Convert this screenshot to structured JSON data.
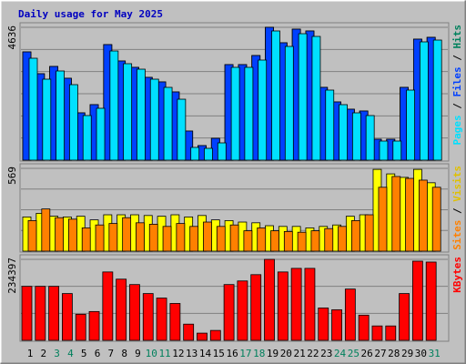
{
  "chart_data": [
    {
      "type": "bar",
      "title": "Daily usage for May 2025",
      "legend_separator": " / ",
      "ylim": [
        0,
        4636
      ],
      "yticks": [
        4636
      ],
      "grid_divisions": 6,
      "series": [
        {
          "name": "Pages",
          "color": "#00e0ff",
          "values": [
            3556,
            2826,
            3112,
            2635,
            1556,
            1810,
            3810,
            3366,
            3175,
            2826,
            2540,
            2127,
            445,
            413,
            603,
            3239,
            3239,
            3493,
            4509,
            3969,
            4413,
            4318,
            2445,
            1937,
            1651,
            1556,
            667,
            667,
            2445,
            4128,
            4191
          ]
        },
        {
          "name": "Files",
          "color": "#0040ff",
          "values": [
            3778,
            3016,
            3270,
            2858,
            1651,
            1937,
            4032,
            3461,
            3239,
            2889,
            2731,
            2381,
            1016,
            508,
            762,
            3334,
            3334,
            3651,
            4636,
            4096,
            4572,
            4509,
            2540,
            2032,
            1778,
            1715,
            730,
            730,
            2540,
            4223,
            4286
          ]
        },
        {
          "name": "Hits",
          "color": "#00805c",
          "values": [
            3778,
            3016,
            3270,
            2858,
            1651,
            1937,
            4032,
            3461,
            3239,
            2889,
            2731,
            2381,
            1016,
            508,
            762,
            3334,
            3334,
            3651,
            4636,
            4096,
            4572,
            4509,
            2540,
            2032,
            1778,
            1715,
            730,
            730,
            2540,
            4223,
            4286
          ]
        }
      ]
    },
    {
      "type": "bar",
      "legend_separator": " / ",
      "ylim": [
        0,
        569
      ],
      "yticks": [
        569
      ],
      "grid_divisions": 4,
      "series": [
        {
          "name": "Sites",
          "color": "#ff8000",
          "values": [
            210,
            290,
            230,
            220,
            160,
            180,
            190,
            230,
            195,
            185,
            170,
            190,
            170,
            200,
            170,
            180,
            140,
            160,
            140,
            135,
            130,
            140,
            155,
            170,
            210,
            250,
            439,
            513,
            500,
            488,
            439
          ]
        },
        {
          "name": "Visits",
          "color": "#ffff00",
          "values": [
            235,
            260,
            240,
            235,
            240,
            215,
            250,
            250,
            250,
            245,
            240,
            250,
            235,
            245,
            215,
            210,
            200,
            195,
            175,
            170,
            170,
            160,
            170,
            180,
            240,
            250,
            562,
            531,
            507,
            562,
            470
          ]
        }
      ]
    },
    {
      "type": "bar",
      "ylim": [
        0,
        234397
      ],
      "yticks": [
        234397
      ],
      "grid_divisions": 3,
      "categories": [
        "1",
        "2",
        "3",
        "4",
        "5",
        "6",
        "7",
        "8",
        "9",
        "10",
        "11",
        "12",
        "13",
        "14",
        "15",
        "16",
        "17",
        "18",
        "19",
        "20",
        "21",
        "22",
        "23",
        "24",
        "25",
        "26",
        "27",
        "28",
        "29",
        "30",
        "31"
      ],
      "category_colors": [
        "#000000",
        "#000000",
        "#00805c",
        "#00805c",
        "#000000",
        "#000000",
        "#000000",
        "#000000",
        "#000000",
        "#00805c",
        "#00805c",
        "#000000",
        "#000000",
        "#000000",
        "#000000",
        "#000000",
        "#00805c",
        "#00805c",
        "#000000",
        "#000000",
        "#000000",
        "#000000",
        "#000000",
        "#00805c",
        "#00805c",
        "#000000",
        "#000000",
        "#000000",
        "#000000",
        "#000000",
        "#00805c"
      ],
      "series": [
        {
          "name": "KBytes",
          "color": "#ff0000",
          "values": [
            156240,
            156240,
            156240,
            135408,
            75516,
            83328,
            197904,
            177072,
            161448,
            135408,
            122388,
            106764,
            46872,
            20832,
            28644,
            161448,
            171864,
            190092,
            234397,
            197904,
            208320,
            208320,
            93744,
            88536,
            148428,
            72912,
            41664,
            41664,
            135408,
            229152,
            226548
          ]
        }
      ]
    }
  ]
}
